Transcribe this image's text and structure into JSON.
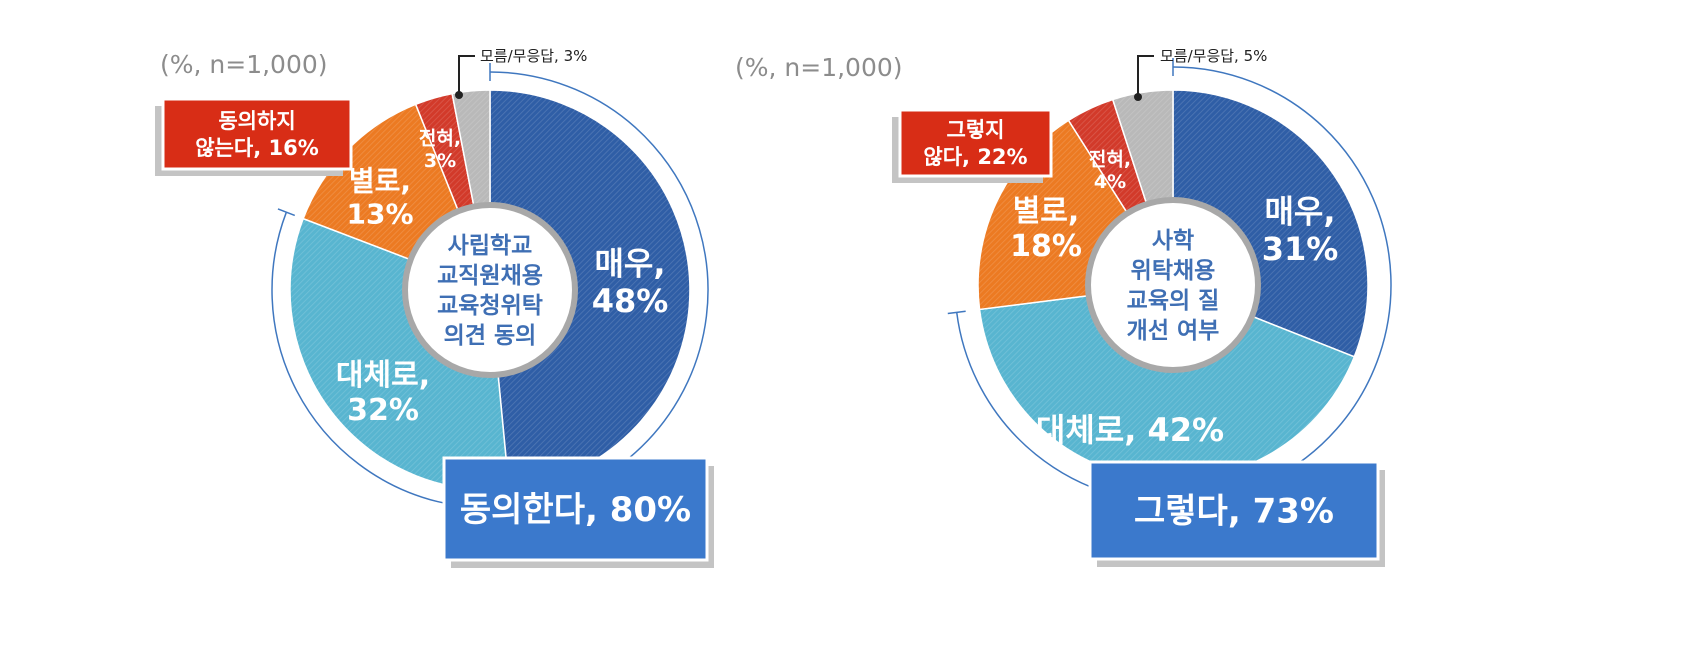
{
  "colors": {
    "maeu": "#2f5ea6",
    "daeche": "#58b5d0",
    "byeollo": "#ec7a22",
    "jeonhyeo": "#d23a2a",
    "moreum": "#b9b9b9",
    "agree_box": "#3b79cc",
    "disagree_box": "#d82d16",
    "bracket": "#3f77bf",
    "center_text": "#3f6fb4"
  },
  "chart_data": [
    {
      "type": "pie",
      "note": "(%, n=1,000)",
      "center_label": [
        "사립학교",
        "교직원채용",
        "교육청위탁",
        "의견 동의"
      ],
      "slices": [
        {
          "key": "maeu",
          "label": [
            "매우,",
            "48%"
          ],
          "value": 48
        },
        {
          "key": "daeche",
          "label": [
            "대체로,",
            "32%"
          ],
          "value": 32
        },
        {
          "key": "byeollo",
          "label": [
            "별로,",
            "13%"
          ],
          "value": 13
        },
        {
          "key": "jeonhyeo",
          "label": [
            "전혀,",
            "3%"
          ],
          "value": 3
        },
        {
          "key": "moreum",
          "label": [
            "모름/무응답, 3%"
          ],
          "value": 3
        }
      ],
      "positive_summary": {
        "label": "동의한다, 80%",
        "value": 80
      },
      "negative_summary": {
        "label": [
          "동의하지",
          "않는다, 16%"
        ],
        "value": 16
      }
    },
    {
      "type": "pie",
      "note": "(%, n=1,000)",
      "center_label": [
        "사학",
        "위탁채용",
        "교육의 질",
        "개선 여부"
      ],
      "slices": [
        {
          "key": "maeu",
          "label": [
            "매우,",
            "31%"
          ],
          "value": 31
        },
        {
          "key": "daeche",
          "label": [
            "대체로, 42%"
          ],
          "value": 42
        },
        {
          "key": "byeollo",
          "label": [
            "별로,",
            "18%"
          ],
          "value": 18
        },
        {
          "key": "jeonhyeo",
          "label": [
            "전혀,",
            "4%"
          ],
          "value": 4
        },
        {
          "key": "moreum",
          "label": [
            "모름/무응답, 5%"
          ],
          "value": 5
        }
      ],
      "positive_summary": {
        "label": "그렇다, 73%",
        "value": 73
      },
      "negative_summary": {
        "label": [
          "그렇지",
          "않다, 22%"
        ],
        "value": 22
      }
    }
  ]
}
